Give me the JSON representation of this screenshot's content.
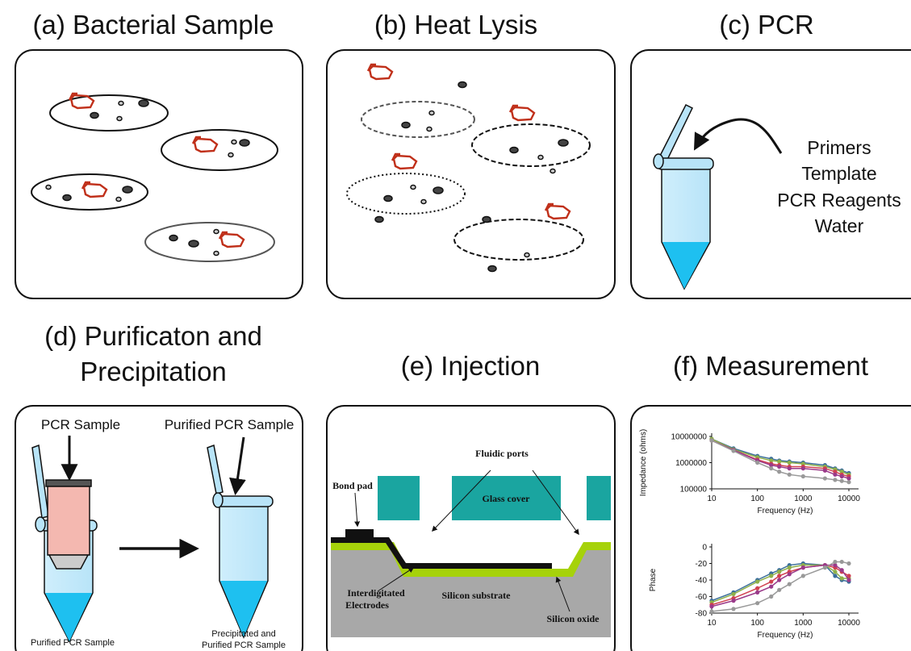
{
  "panels": [
    {
      "title": "(a) Bacterial Sample"
    },
    {
      "title": "(b) Heat Lysis"
    },
    {
      "title": "(c) PCR"
    },
    {
      "title_lines": [
        "(d) Purificaton and",
        "Precipitation"
      ]
    },
    {
      "title": "(e) Injection"
    },
    {
      "title": "(f) Measurement"
    }
  ],
  "pcr": {
    "labels": [
      "Primers",
      "Template",
      "PCR Reagents",
      "Water"
    ]
  },
  "purification": {
    "left_label": "PCR Sample",
    "right_label": "Purified PCR Sample",
    "left_caption": "Purified PCR Sample",
    "right_caption": [
      "Precipitated and",
      "Purified PCR Sample"
    ]
  },
  "injection": {
    "fluidic_ports": "Fluidic ports",
    "bond_pad": "Bond pad",
    "glass_cover": "Glass cover",
    "electrodes": [
      "Interdigitated",
      "Electrodes"
    ],
    "substrate": "Silicon substrate",
    "oxide": "Silicon oxide"
  },
  "measurement": {
    "x": [
      10,
      30,
      100,
      200,
      300,
      500,
      1000,
      3000,
      5000,
      7000,
      10000
    ],
    "xlim": [
      10,
      10000
    ],
    "xticks": [
      10,
      100,
      1000,
      10000
    ],
    "log_x": true,
    "impedance": {
      "type": "line",
      "ylabel": "Impedance (ohms)",
      "xlabel": "Frequency (Hz)",
      "log_y": true,
      "ylim": [
        100000,
        10000000
      ],
      "yticks": [
        100000,
        1000000,
        10000000
      ],
      "series": [
        {
          "color": "#3a6e9a",
          "values": [
            8000000,
            3500000,
            1800000,
            1400000,
            1200000,
            1100000,
            1000000,
            800000,
            600000,
            500000,
            400000
          ]
        },
        {
          "color": "#8fb04a",
          "values": [
            8000000,
            3200000,
            1600000,
            1200000,
            1100000,
            1000000,
            900000,
            700000,
            550000,
            450000,
            350000
          ]
        },
        {
          "color": "#d04050",
          "values": [
            7000000,
            3000000,
            1300000,
            900000,
            800000,
            700000,
            700000,
            600000,
            450000,
            350000,
            300000
          ]
        },
        {
          "color": "#9a3a8a",
          "values": [
            7000000,
            3000000,
            1200000,
            800000,
            700000,
            600000,
            600000,
            500000,
            350000,
            300000,
            250000
          ]
        },
        {
          "color": "#999999",
          "values": [
            7000000,
            2800000,
            1000000,
            600000,
            450000,
            350000,
            300000,
            250000,
            220000,
            200000,
            180000
          ]
        }
      ]
    },
    "phase": {
      "type": "line",
      "ylabel": "Phase",
      "xlabel": "Frequency (Hz)",
      "ylim": [
        -80,
        0
      ],
      "yticks": [
        0,
        -20,
        -40,
        -60,
        -80
      ],
      "series": [
        {
          "color": "#3a6e9a",
          "values": [
            -65,
            -55,
            -40,
            -32,
            -28,
            -22,
            -20,
            -22,
            -35,
            -40,
            -42
          ]
        },
        {
          "color": "#8fb04a",
          "values": [
            -67,
            -57,
            -42,
            -35,
            -30,
            -25,
            -22,
            -22,
            -30,
            -38,
            -38
          ]
        },
        {
          "color": "#d04050",
          "values": [
            -70,
            -62,
            -50,
            -42,
            -35,
            -30,
            -25,
            -22,
            -25,
            -30,
            -35
          ]
        },
        {
          "color": "#9a3a8a",
          "values": [
            -72,
            -65,
            -55,
            -48,
            -40,
            -33,
            -25,
            -22,
            -22,
            -28,
            -40
          ]
        },
        {
          "color": "#999999",
          "values": [
            -78,
            -75,
            -68,
            -60,
            -52,
            -45,
            -35,
            -25,
            -18,
            -18,
            -20
          ]
        }
      ]
    }
  }
}
